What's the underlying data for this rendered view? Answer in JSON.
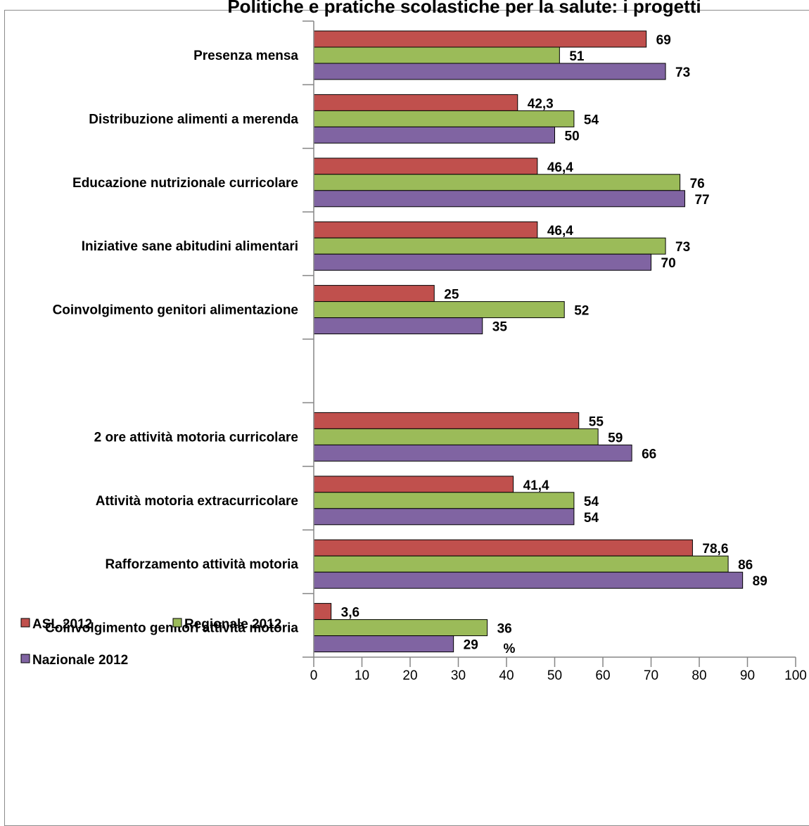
{
  "title": "Politiche e pratiche scolastiche per la salute: i progetti",
  "colors": {
    "asl": "#c0504d",
    "regionale": "#9bbb59",
    "nazionale": "#8064a2",
    "axis": "#868686"
  },
  "chart_data": {
    "type": "bar",
    "orientation": "horizontal",
    "title": "Politiche e pratiche scolastiche per la salute: i progetti",
    "xlabel": "%",
    "xlim": [
      0,
      100
    ],
    "xticks": [
      0,
      10,
      20,
      30,
      40,
      50,
      60,
      70,
      80,
      90,
      100
    ],
    "legend_position": "bottom-left",
    "grid": false,
    "categories": [
      "Presenza mensa",
      "Distribuzione alimenti a merenda",
      "Educazione nutrizionale curricolare",
      "Iniziative sane abitudini alimentari",
      "Coinvolgimento genitori alimentazione",
      "",
      "2 ore attività motoria curricolare",
      "Attività motoria extracurricolare",
      "Rafforzamento attività motoria",
      "Coinvolgimento genitori attività motoria"
    ],
    "series": [
      {
        "name": "ASL 2012",
        "color_key": "asl",
        "values": [
          69,
          42.3,
          46.4,
          46.4,
          25,
          null,
          55,
          41.4,
          78.6,
          3.6
        ],
        "labels": [
          "69",
          "42,3",
          "46,4",
          "46,4",
          "25",
          "",
          "55",
          "41,4",
          "78,6",
          "3,6"
        ]
      },
      {
        "name": "Regionale 2012",
        "color_key": "regionale",
        "values": [
          51,
          54,
          76,
          73,
          52,
          null,
          59,
          54,
          86,
          36
        ],
        "labels": [
          "51",
          "54",
          "76",
          "73",
          "52",
          "",
          "59",
          "54",
          "86",
          "36"
        ]
      },
      {
        "name": "Nazionale 2012",
        "color_key": "nazionale",
        "values": [
          73,
          50,
          77,
          70,
          35,
          null,
          66,
          54,
          89,
          29
        ],
        "labels": [
          "73",
          "50",
          "77",
          "70",
          "35",
          "",
          "66",
          "54",
          "89",
          "29"
        ]
      }
    ]
  }
}
